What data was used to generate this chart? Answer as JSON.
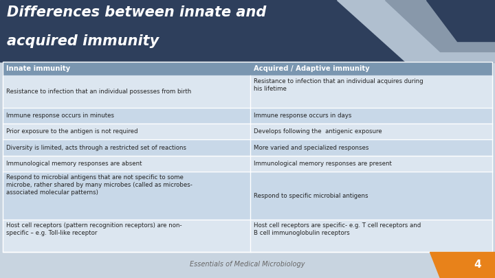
{
  "title_line1": "Differences between innate and",
  "title_line2": "acquired immunity",
  "title_bg_color": "#2e3f5c",
  "title_text_color": "#ffffff",
  "slide_bg_color": "#c8d4e0",
  "header_bg_color": "#7a96b0",
  "header_text_color": "#ffffff",
  "row_bg_odd": "#dce6f0",
  "row_bg_even": "#c8d8e8",
  "cell_text_color": "#222222",
  "col1_header": "Innate immunity",
  "col2_header": "Acquired / Adaptive immunity",
  "rows": [
    [
      "Resistance to infection that an individual possesses from birth",
      "Resistance to infection that an individual acquires during\nhis lifetime"
    ],
    [
      "Immune response occurs in minutes",
      "Immune response occurs in days"
    ],
    [
      "Prior exposure to the antigen is not required",
      "Develops following the  antigenic exposure"
    ],
    [
      "Diversity is limited, acts through a restricted set of reactions",
      "More varied and specialized responses"
    ],
    [
      "Immunological memory responses are absent",
      "Immunological memory responses are present"
    ],
    [
      "Respond to microbial antigens that are not specific to some\nmicrobe, rather shared by many microbes (called as microbes-\nassociated molecular patterns)",
      "Respond to specific microbial antigens"
    ],
    [
      "Host cell receptors (pattern recognition receptors) are non-\nspecific – e.g. Toll-like receptor",
      "Host cell receptors are specific- e.g. T cell receptors and\nB cell immunoglobulin receptors"
    ]
  ],
  "footer_text": "Essentials of Medical Microbiology",
  "footer_text_color": "#666666",
  "page_num": "4",
  "page_num_bg": "#e8821a",
  "page_num_text_color": "#ffffff",
  "top_accent_light": "#c8d4e0",
  "top_accent_mid": "#a8b8cc",
  "top_accent_dark": "#2e3f5c"
}
